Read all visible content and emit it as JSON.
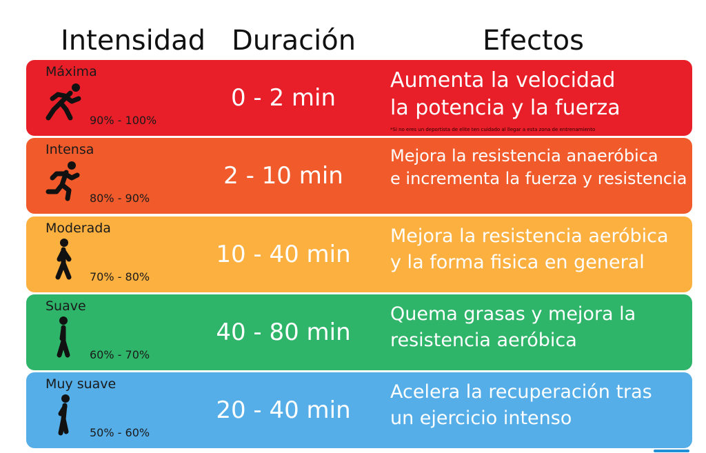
{
  "headers": {
    "intensity": "Intensidad",
    "duration": "Duración",
    "effects": "Efectos"
  },
  "zones": [
    {
      "name": "Máxima",
      "range": "90% - 100%",
      "duration": "0 - 2 min",
      "effects": [
        "Aumenta la velocidad",
        "la potencia y la fuerza"
      ],
      "note": "*Si no eres un deportista de elite ten cuidado al llegar a esta zona de entrenamiento",
      "color": "#e81f28",
      "icon": "sprinter-icon"
    },
    {
      "name": "Intensa",
      "range": "80% - 90%",
      "duration": "2 - 10 min",
      "effects": [
        "Mejora la resistencia anaeróbica",
        "e incrementa la fuerza y resistencia"
      ],
      "color": "#f15a2b",
      "icon": "runner-icon"
    },
    {
      "name": "Moderada",
      "range": "70% - 80%",
      "duration": "10 - 40 min",
      "effects": [
        "Mejora la resistencia aeróbica",
        "y la forma fisica en general"
      ],
      "color": "#fbb040",
      "icon": "fast-walker-icon"
    },
    {
      "name": "Suave",
      "range": "60% - 70%",
      "duration": "40 - 80 min",
      "effects": [
        "Quema grasas y mejora la",
        "resistencia aeróbica"
      ],
      "color": "#2fb56a",
      "icon": "walker-icon"
    },
    {
      "name": "Muy suave",
      "range": "50% - 60%",
      "duration": "20 - 40 min",
      "effects": [
        "Acelera la recuperación tras",
        "un ejercicio intenso"
      ],
      "color": "#55aee8",
      "icon": "slow-walker-icon"
    }
  ]
}
